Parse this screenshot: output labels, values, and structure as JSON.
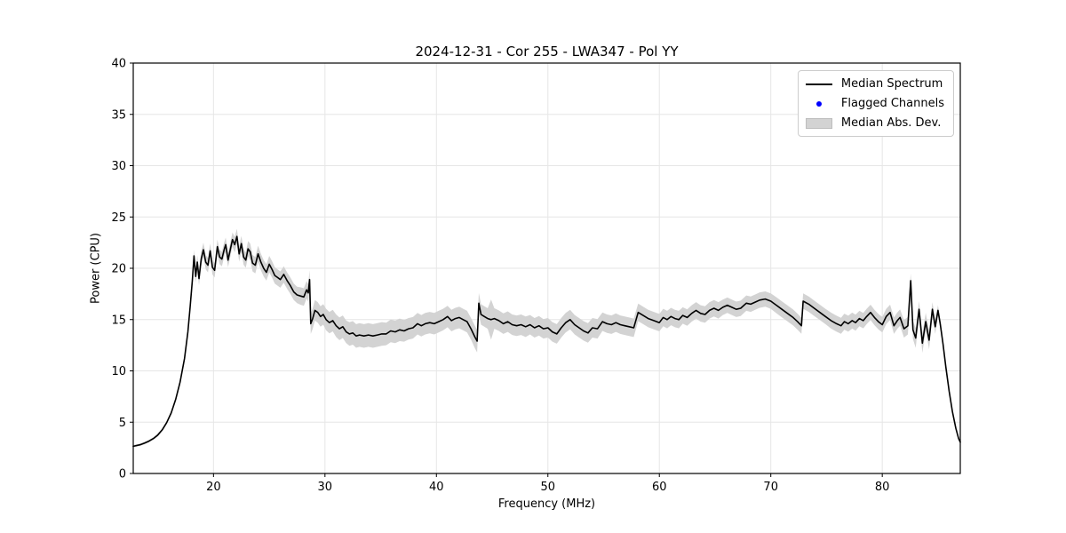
{
  "title": "2024-12-31 - Cor 255 - LWA347 - Pol YY",
  "legend": {
    "items": [
      {
        "label": "Median Spectrum",
        "marker": "line",
        "color": "#000000"
      },
      {
        "label": "Flagged Channels",
        "marker": "dot",
        "color": "#0000ff"
      },
      {
        "label": "Median Abs. Dev.",
        "marker": "patch",
        "color": "#d3d3d3"
      }
    ]
  },
  "colors": {
    "median_line": "#000000",
    "flagged": "#0000ff",
    "mad_band": "#d3d3d3",
    "grid": "#e6e6e6",
    "spine": "#000000"
  },
  "chart_data": {
    "type": "line",
    "title": "2024-12-31 - Cor 255 - LWA347 - Pol YY",
    "xlabel": "Frequency (MHz)",
    "ylabel": "Power (CPU)",
    "xlim": [
      12.8,
      87.0
    ],
    "ylim": [
      0,
      40
    ],
    "xticks": [
      20,
      30,
      40,
      50,
      60,
      70,
      80
    ],
    "yticks": [
      0,
      5,
      10,
      15,
      20,
      25,
      30,
      35,
      40
    ],
    "grid": true,
    "legend_position": "upper right",
    "series_note": "points are [frequency_MHz, median_power_CPU, median_abs_dev]",
    "flagged_channels": [],
    "points": [
      [
        12.8,
        2.65,
        0.12
      ],
      [
        13.4,
        2.8,
        0.12
      ],
      [
        13.8,
        2.95,
        0.12
      ],
      [
        14.2,
        3.15,
        0.12
      ],
      [
        14.6,
        3.4,
        0.12
      ],
      [
        15.0,
        3.75,
        0.15
      ],
      [
        15.4,
        4.25,
        0.15
      ],
      [
        15.8,
        4.95,
        0.15
      ],
      [
        16.2,
        5.9,
        0.18
      ],
      [
        16.6,
        7.2,
        0.2
      ],
      [
        17.0,
        8.9,
        0.25
      ],
      [
        17.4,
        11.2,
        0.3
      ],
      [
        17.7,
        13.8,
        0.35
      ],
      [
        17.9,
        16.2,
        0.4
      ],
      [
        18.1,
        18.8,
        0.5
      ],
      [
        18.25,
        21.2,
        0.6
      ],
      [
        18.4,
        19.2,
        0.6
      ],
      [
        18.55,
        20.6,
        0.65
      ],
      [
        18.7,
        19.0,
        0.65
      ],
      [
        18.9,
        20.9,
        0.7
      ],
      [
        19.1,
        21.8,
        0.7
      ],
      [
        19.3,
        20.6,
        0.7
      ],
      [
        19.5,
        20.3,
        0.7
      ],
      [
        19.7,
        21.7,
        0.7
      ],
      [
        19.9,
        20.1,
        0.7
      ],
      [
        20.1,
        19.8,
        0.7
      ],
      [
        20.35,
        22.1,
        0.7
      ],
      [
        20.55,
        21.1,
        0.7
      ],
      [
        20.75,
        20.9,
        0.7
      ],
      [
        20.95,
        21.8,
        0.7
      ],
      [
        21.1,
        22.3,
        0.7
      ],
      [
        21.3,
        20.8,
        0.7
      ],
      [
        21.5,
        21.8,
        0.7
      ],
      [
        21.7,
        22.8,
        0.7
      ],
      [
        21.9,
        22.3,
        0.75
      ],
      [
        22.1,
        23.1,
        0.75
      ],
      [
        22.3,
        21.4,
        0.75
      ],
      [
        22.5,
        22.4,
        0.75
      ],
      [
        22.7,
        21.1,
        0.75
      ],
      [
        22.9,
        20.8,
        0.75
      ],
      [
        23.1,
        21.9,
        0.75
      ],
      [
        23.3,
        21.6,
        0.8
      ],
      [
        23.5,
        20.5,
        0.8
      ],
      [
        23.75,
        20.3,
        0.8
      ],
      [
        24.0,
        21.4,
        0.8
      ],
      [
        24.25,
        20.6,
        0.8
      ],
      [
        24.5,
        20.0,
        0.8
      ],
      [
        24.75,
        19.6,
        0.8
      ],
      [
        25.0,
        20.4,
        0.8
      ],
      [
        25.25,
        19.9,
        0.8
      ],
      [
        25.5,
        19.3,
        0.8
      ],
      [
        25.75,
        19.1,
        0.8
      ],
      [
        26.0,
        18.9,
        0.8
      ],
      [
        26.3,
        19.4,
        0.8
      ],
      [
        26.6,
        18.8,
        0.8
      ],
      [
        26.9,
        18.3,
        0.8
      ],
      [
        27.2,
        17.7,
        0.8
      ],
      [
        27.5,
        17.4,
        0.8
      ],
      [
        27.8,
        17.3,
        0.85
      ],
      [
        28.1,
        17.2,
        0.85
      ],
      [
        28.35,
        17.9,
        0.85
      ],
      [
        28.5,
        17.6,
        0.85
      ],
      [
        28.62,
        18.9,
        0.9
      ],
      [
        28.72,
        14.6,
        1.0
      ],
      [
        28.9,
        15.1,
        1.0
      ],
      [
        29.1,
        15.9,
        1.0
      ],
      [
        29.35,
        15.7,
        1.0
      ],
      [
        29.6,
        15.3,
        1.0
      ],
      [
        29.85,
        15.5,
        1.0
      ],
      [
        30.1,
        15.0,
        1.05
      ],
      [
        30.4,
        14.7,
        1.05
      ],
      [
        30.7,
        14.9,
        1.05
      ],
      [
        31.0,
        14.4,
        1.1
      ],
      [
        31.3,
        14.1,
        1.1
      ],
      [
        31.6,
        14.3,
        1.1
      ],
      [
        31.9,
        13.8,
        1.1
      ],
      [
        32.2,
        13.6,
        1.15
      ],
      [
        32.5,
        13.7,
        1.15
      ],
      [
        32.8,
        13.4,
        1.15
      ],
      [
        33.1,
        13.5,
        1.15
      ],
      [
        33.5,
        13.4,
        1.15
      ],
      [
        33.9,
        13.5,
        1.15
      ],
      [
        34.3,
        13.4,
        1.15
      ],
      [
        34.7,
        13.5,
        1.15
      ],
      [
        35.1,
        13.6,
        1.15
      ],
      [
        35.5,
        13.6,
        1.1
      ],
      [
        35.9,
        13.9,
        1.1
      ],
      [
        36.3,
        13.8,
        1.1
      ],
      [
        36.7,
        14.0,
        1.1
      ],
      [
        37.1,
        13.9,
        1.05
      ],
      [
        37.5,
        14.1,
        1.05
      ],
      [
        37.9,
        14.2,
        1.05
      ],
      [
        38.3,
        14.6,
        1.05
      ],
      [
        38.65,
        14.4,
        1.05
      ],
      [
        39.0,
        14.6,
        1.05
      ],
      [
        39.4,
        14.7,
        1.05
      ],
      [
        39.8,
        14.6,
        1.05
      ],
      [
        40.2,
        14.8,
        1.05
      ],
      [
        40.6,
        15.0,
        1.05
      ],
      [
        41.0,
        15.3,
        1.05
      ],
      [
        41.35,
        14.9,
        1.05
      ],
      [
        41.7,
        15.1,
        1.05
      ],
      [
        42.05,
        15.2,
        1.05
      ],
      [
        42.4,
        15.0,
        1.05
      ],
      [
        42.75,
        14.8,
        1.05
      ],
      [
        43.1,
        14.1,
        1.05
      ],
      [
        43.45,
        13.3,
        1.1
      ],
      [
        43.65,
        12.9,
        1.1
      ],
      [
        43.8,
        16.6,
        1.0
      ],
      [
        44.0,
        15.5,
        1.0
      ],
      [
        44.3,
        15.3,
        1.0
      ],
      [
        44.6,
        15.1,
        1.0
      ],
      [
        44.9,
        15.0,
        1.95
      ],
      [
        45.2,
        15.1,
        1.0
      ],
      [
        45.6,
        14.9,
        1.0
      ],
      [
        46.0,
        14.6,
        1.0
      ],
      [
        46.4,
        14.8,
        1.0
      ],
      [
        46.8,
        14.5,
        1.0
      ],
      [
        47.2,
        14.4,
        1.0
      ],
      [
        47.6,
        14.5,
        1.0
      ],
      [
        48.0,
        14.3,
        1.0
      ],
      [
        48.4,
        14.5,
        0.95
      ],
      [
        48.8,
        14.2,
        0.95
      ],
      [
        49.2,
        14.4,
        0.95
      ],
      [
        49.6,
        14.1,
        0.95
      ],
      [
        50.0,
        14.2,
        0.95
      ],
      [
        50.4,
        13.8,
        0.95
      ],
      [
        50.8,
        13.6,
        0.95
      ],
      [
        51.2,
        14.2,
        0.95
      ],
      [
        51.6,
        14.7,
        0.95
      ],
      [
        52.0,
        15.0,
        0.95
      ],
      [
        52.4,
        14.5,
        0.95
      ],
      [
        52.8,
        14.2,
        0.95
      ],
      [
        53.2,
        13.9,
        0.95
      ],
      [
        53.6,
        13.7,
        0.95
      ],
      [
        54.0,
        14.2,
        0.95
      ],
      [
        54.45,
        14.1,
        0.95
      ],
      [
        54.9,
        14.8,
        0.9
      ],
      [
        55.3,
        14.6,
        0.9
      ],
      [
        55.7,
        14.5,
        0.9
      ],
      [
        56.1,
        14.7,
        0.9
      ],
      [
        56.5,
        14.5,
        0.9
      ],
      [
        56.9,
        14.4,
        0.9
      ],
      [
        57.3,
        14.3,
        0.9
      ],
      [
        57.7,
        14.2,
        0.9
      ],
      [
        58.1,
        15.7,
        0.85
      ],
      [
        58.55,
        15.4,
        0.85
      ],
      [
        59.0,
        15.1,
        0.85
      ],
      [
        59.5,
        14.9,
        0.85
      ],
      [
        60.0,
        14.7,
        0.85
      ],
      [
        60.35,
        15.2,
        0.85
      ],
      [
        60.7,
        15.0,
        0.85
      ],
      [
        61.05,
        15.3,
        0.85
      ],
      [
        61.4,
        15.1,
        0.85
      ],
      [
        61.75,
        15.0,
        0.85
      ],
      [
        62.1,
        15.4,
        0.8
      ],
      [
        62.5,
        15.2,
        0.8
      ],
      [
        62.9,
        15.6,
        0.8
      ],
      [
        63.3,
        15.9,
        0.8
      ],
      [
        63.7,
        15.6,
        0.8
      ],
      [
        64.1,
        15.5,
        0.8
      ],
      [
        64.5,
        15.9,
        0.8
      ],
      [
        64.9,
        16.1,
        0.8
      ],
      [
        65.3,
        15.9,
        0.8
      ],
      [
        65.7,
        16.2,
        0.75
      ],
      [
        66.1,
        16.4,
        0.75
      ],
      [
        66.5,
        16.2,
        0.75
      ],
      [
        66.9,
        16.0,
        0.75
      ],
      [
        67.3,
        16.1,
        0.75
      ],
      [
        67.8,
        16.6,
        0.75
      ],
      [
        68.2,
        16.5,
        0.75
      ],
      [
        68.6,
        16.7,
        0.75
      ],
      [
        69.0,
        16.9,
        0.75
      ],
      [
        69.5,
        17.0,
        0.75
      ],
      [
        70.0,
        16.8,
        0.75
      ],
      [
        70.5,
        16.4,
        0.78
      ],
      [
        71.0,
        16.0,
        0.78
      ],
      [
        71.5,
        15.6,
        0.78
      ],
      [
        72.0,
        15.2,
        0.78
      ],
      [
        72.4,
        14.8,
        0.78
      ],
      [
        72.75,
        14.4,
        0.78
      ],
      [
        72.9,
        16.8,
        0.75
      ],
      [
        73.4,
        16.5,
        0.75
      ],
      [
        73.9,
        16.1,
        0.75
      ],
      [
        74.4,
        15.7,
        0.75
      ],
      [
        74.9,
        15.3,
        0.75
      ],
      [
        75.4,
        14.9,
        0.78
      ],
      [
        75.9,
        14.6,
        0.78
      ],
      [
        76.3,
        14.4,
        0.78
      ],
      [
        76.6,
        14.8,
        0.78
      ],
      [
        76.95,
        14.6,
        0.78
      ],
      [
        77.3,
        14.9,
        0.78
      ],
      [
        77.6,
        14.7,
        0.78
      ],
      [
        77.95,
        15.1,
        0.75
      ],
      [
        78.3,
        14.9,
        0.75
      ],
      [
        78.6,
        15.3,
        0.75
      ],
      [
        78.95,
        15.7,
        0.75
      ],
      [
        79.3,
        15.2,
        0.75
      ],
      [
        79.65,
        14.8,
        0.75
      ],
      [
        80.0,
        14.5,
        0.75
      ],
      [
        80.35,
        15.3,
        0.75
      ],
      [
        80.7,
        15.7,
        0.75
      ],
      [
        81.05,
        14.4,
        0.8
      ],
      [
        81.35,
        14.9,
        0.8
      ],
      [
        81.6,
        15.2,
        0.8
      ],
      [
        81.95,
        14.1,
        0.85
      ],
      [
        82.3,
        14.4,
        0.85
      ],
      [
        82.55,
        18.8,
        0.7
      ],
      [
        82.75,
        14.0,
        0.9
      ],
      [
        83.0,
        13.2,
        0.95
      ],
      [
        83.3,
        16.0,
        0.8
      ],
      [
        83.6,
        12.7,
        0.95
      ],
      [
        83.9,
        14.8,
        0.85
      ],
      [
        84.2,
        13.0,
        0.9
      ],
      [
        84.5,
        16.0,
        0.7
      ],
      [
        84.75,
        14.3,
        0.7
      ],
      [
        85.0,
        15.9,
        0.5
      ],
      [
        85.2,
        14.6,
        0.4
      ],
      [
        85.45,
        12.6,
        0.3
      ],
      [
        85.7,
        10.4,
        0.25
      ],
      [
        86.0,
        8.0,
        0.2
      ],
      [
        86.3,
        6.0,
        0.15
      ],
      [
        86.6,
        4.4,
        0.12
      ],
      [
        86.85,
        3.4,
        0.1
      ],
      [
        87.0,
        3.05,
        0.1
      ]
    ]
  }
}
